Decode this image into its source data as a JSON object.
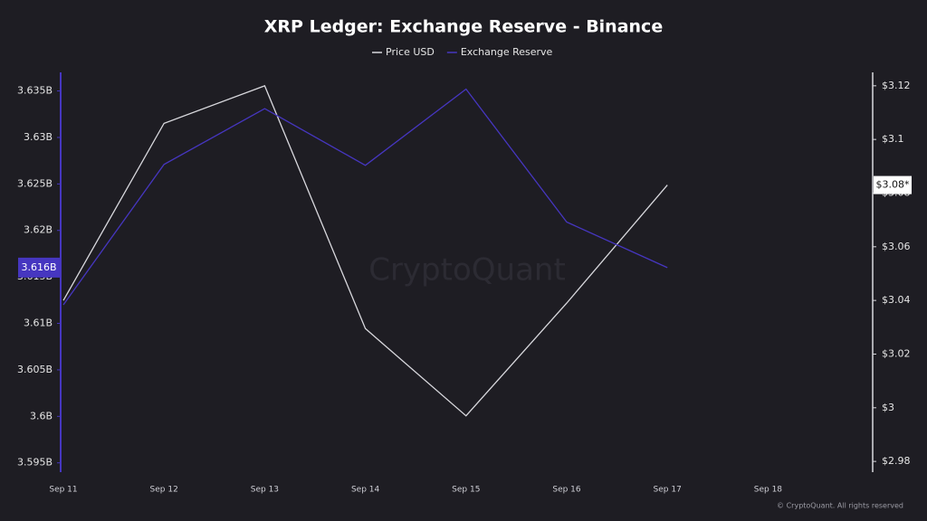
{
  "chart_data": {
    "type": "line",
    "title": "XRP Ledger: Exchange Reserve - Binance",
    "watermark": "CryptoQuant",
    "footer": "© CryptoQuant. All rights reserved",
    "legend": "top",
    "categories": [
      "Sep 11",
      "Sep 12",
      "Sep 13",
      "Sep 14",
      "Sep 15",
      "Sep 16",
      "Sep 17",
      "Sep 18"
    ],
    "series": [
      {
        "name": "Price USD",
        "color": "#d9d9de",
        "axis": "y2",
        "values": [
          3.04,
          3.106,
          3.12,
          3.0295,
          2.997,
          3.039,
          3.083,
          null
        ],
        "last_value_label": "$3.08*"
      },
      {
        "name": "Exchange Reserve",
        "color": "#4636c0",
        "values": [
          3.612,
          3.6271,
          3.6331,
          3.627,
          3.6352,
          3.6209,
          3.616,
          null
        ],
        "last_value_label": "3.616B"
      }
    ],
    "ylim": [
      3.594,
      3.637
    ],
    "yticks": [
      {
        "value": 3.595,
        "label": "3.595B"
      },
      {
        "value": 3.6,
        "label": "3.6B"
      },
      {
        "value": 3.605,
        "label": "3.605B"
      },
      {
        "value": 3.61,
        "label": "3.61B"
      },
      {
        "value": 3.615,
        "label": "3.615B"
      },
      {
        "value": 3.62,
        "label": "3.62B"
      },
      {
        "value": 3.625,
        "label": "3.625B"
      },
      {
        "value": 3.63,
        "label": "3.63B"
      },
      {
        "value": 3.635,
        "label": "3.635B"
      }
    ],
    "y2lim": [
      2.976,
      3.125
    ],
    "y2ticks": [
      {
        "value": 2.98,
        "label": "$2.98"
      },
      {
        "value": 3,
        "label": "$3"
      },
      {
        "value": 3.02,
        "label": "$3.02"
      },
      {
        "value": 3.04,
        "label": "$3.04"
      },
      {
        "value": 3.06,
        "label": "$3.06"
      },
      {
        "value": 3.08,
        "label": "$3.08"
      },
      {
        "value": 3.1,
        "label": "$3.1"
      },
      {
        "value": 3.12,
        "label": "$3.12"
      }
    ]
  }
}
